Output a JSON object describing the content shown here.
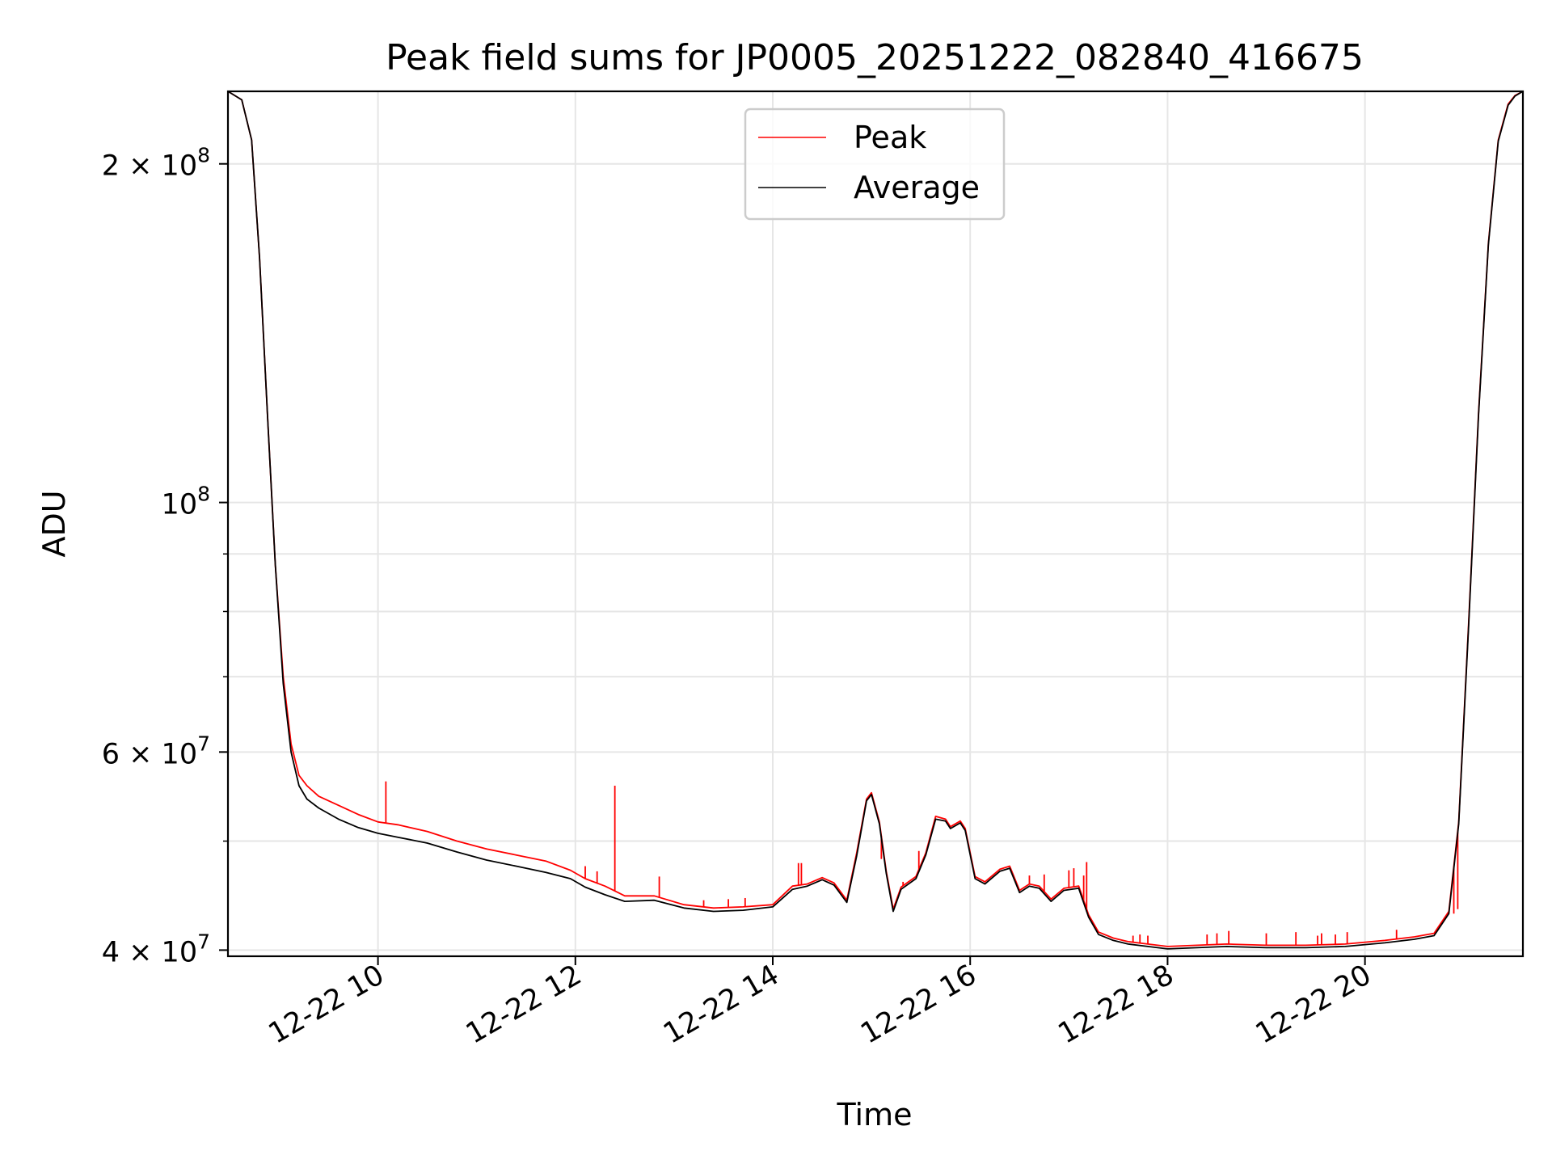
{
  "chart_data": {
    "type": "line",
    "title": "Peak field sums for JP0005_20251222_082840_416675",
    "xlabel": "Time",
    "ylabel": "ADU",
    "yscale": "log",
    "grid": true,
    "legend_position": "top-center",
    "x_unit": "hours since 12-22 00:00",
    "xlim": [
      8.48,
      21.6
    ],
    "ylim": [
      39500000,
      232000000
    ],
    "x_ticks": [
      {
        "value": 10,
        "label": "12-22 10"
      },
      {
        "value": 12,
        "label": "12-22 12"
      },
      {
        "value": 14,
        "label": "12-22 14"
      },
      {
        "value": 16,
        "label": "12-22 16"
      },
      {
        "value": 18,
        "label": "12-22 18"
      },
      {
        "value": 20,
        "label": "12-22 20"
      }
    ],
    "y_ticks": [
      {
        "value": 40000000,
        "mantissa": "4",
        "exponent": "7"
      },
      {
        "value": 60000000,
        "mantissa": "6",
        "exponent": "7"
      },
      {
        "value": 100000000,
        "mantissa": "10",
        "exponent": "8"
      },
      {
        "value": 200000000,
        "mantissa": "2",
        "exponent": "8"
      }
    ],
    "y_minor_ticks": [
      50000000,
      70000000,
      80000000,
      90000000
    ],
    "series": [
      {
        "name": "Peak",
        "color": "#ff0000",
        "x": [
          8.48,
          8.62,
          8.72,
          8.8,
          8.88,
          8.96,
          9.04,
          9.12,
          9.2,
          9.28,
          9.4,
          9.6,
          9.8,
          10.0,
          10.2,
          10.5,
          10.8,
          11.1,
          11.4,
          11.7,
          11.95,
          12.1,
          12.3,
          12.5,
          12.8,
          13.1,
          13.4,
          13.7,
          14.0,
          14.2,
          14.35,
          14.5,
          14.62,
          14.75,
          14.85,
          14.95,
          15.0,
          15.08,
          15.15,
          15.22,
          15.3,
          15.45,
          15.55,
          15.65,
          15.75,
          15.8,
          15.9,
          15.95,
          16.05,
          16.15,
          16.3,
          16.4,
          16.5,
          16.6,
          16.7,
          16.82,
          16.95,
          17.1,
          17.2,
          17.3,
          17.45,
          17.6,
          17.8,
          18.0,
          18.3,
          18.6,
          19.0,
          19.4,
          19.8,
          20.2,
          20.5,
          20.7,
          20.85,
          20.95,
          21.05,
          21.15,
          21.25,
          21.35,
          21.45,
          21.52,
          21.6
        ],
        "values": [
          232000000,
          228000000,
          210000000,
          165000000,
          120000000,
          88000000,
          70000000,
          61000000,
          57200000,
          56000000,
          54800000,
          53800000,
          52800000,
          52000000,
          51700000,
          51000000,
          50000000,
          49200000,
          48600000,
          48000000,
          47100000,
          46300000,
          45600000,
          44700000,
          44700000,
          43900000,
          43600000,
          43700000,
          43900000,
          45600000,
          45800000,
          46400000,
          45900000,
          44300000,
          48800000,
          54500000,
          55200000,
          52000000,
          47000000,
          43500000,
          45500000,
          46500000,
          48800000,
          52600000,
          52300000,
          51500000,
          52100000,
          51300000,
          46500000,
          46000000,
          47200000,
          47500000,
          45200000,
          45800000,
          45600000,
          44400000,
          45400000,
          45600000,
          43000000,
          41500000,
          41000000,
          40700000,
          40500000,
          40300000,
          40400000,
          40500000,
          40400000,
          40400000,
          40500000,
          40800000,
          41100000,
          41400000,
          43300000,
          52000000,
          78000000,
          120000000,
          170000000,
          210000000,
          226000000,
          230000000,
          232000000
        ]
      },
      {
        "name": "Average",
        "color": "#000000",
        "x": [
          8.48,
          8.62,
          8.72,
          8.8,
          8.88,
          8.96,
          9.04,
          9.12,
          9.2,
          9.28,
          9.4,
          9.6,
          9.8,
          10.0,
          10.2,
          10.5,
          10.8,
          11.1,
          11.4,
          11.7,
          11.95,
          12.1,
          12.3,
          12.5,
          12.8,
          13.1,
          13.4,
          13.7,
          14.0,
          14.2,
          14.35,
          14.5,
          14.62,
          14.75,
          14.85,
          14.95,
          15.0,
          15.08,
          15.15,
          15.22,
          15.3,
          15.45,
          15.55,
          15.65,
          15.75,
          15.8,
          15.9,
          15.95,
          16.05,
          16.15,
          16.3,
          16.4,
          16.5,
          16.6,
          16.7,
          16.82,
          16.95,
          17.1,
          17.2,
          17.3,
          17.45,
          17.6,
          17.8,
          18.0,
          18.3,
          18.6,
          19.0,
          19.4,
          19.8,
          20.2,
          20.5,
          20.7,
          20.85,
          20.95,
          21.05,
          21.15,
          21.25,
          21.35,
          21.45,
          21.52,
          21.6
        ],
        "values": [
          232000000,
          228000000,
          210000000,
          165000000,
          120000000,
          88000000,
          69000000,
          60000000,
          56000000,
          54500000,
          53500000,
          52300000,
          51400000,
          50800000,
          50400000,
          49800000,
          48900000,
          48100000,
          47500000,
          46900000,
          46300000,
          45500000,
          44800000,
          44200000,
          44300000,
          43600000,
          43300000,
          43400000,
          43700000,
          45300000,
          45600000,
          46200000,
          45700000,
          44100000,
          48500000,
          54300000,
          55000000,
          51800000,
          46800000,
          43300000,
          45300000,
          46300000,
          48600000,
          52300000,
          52100000,
          51300000,
          51900000,
          51100000,
          46300000,
          45800000,
          47000000,
          47300000,
          45000000,
          45600000,
          45400000,
          44200000,
          45200000,
          45400000,
          42800000,
          41300000,
          40800000,
          40500000,
          40300000,
          40100000,
          40200000,
          40300000,
          40200000,
          40200000,
          40300000,
          40600000,
          40900000,
          41200000,
          43100000,
          51800000,
          77500000,
          119500000,
          169500000,
          209500000,
          225500000,
          229800000,
          232000000
        ]
      }
    ],
    "peak_spikes": {
      "x": [
        10.08,
        12.1,
        12.22,
        12.4,
        12.85,
        13.3,
        13.55,
        13.72,
        14.26,
        14.29,
        15.1,
        15.32,
        15.48,
        16.6,
        16.75,
        17.0,
        17.05,
        17.15,
        17.18,
        17.65,
        17.72,
        17.8,
        18.4,
        18.5,
        18.62,
        19.0,
        19.3,
        19.52,
        19.56,
        19.7,
        19.82,
        20.32,
        20.9,
        20.94
      ],
      "values": [
        56500000,
        47500000,
        47000000,
        56000000,
        46500000,
        44300000,
        44400000,
        44500000,
        47800000,
        47800000,
        48200000,
        46000000,
        49000000,
        46600000,
        46700000,
        47100000,
        47300000,
        46600000,
        47900000,
        41200000,
        41300000,
        41200000,
        41300000,
        41400000,
        41600000,
        41400000,
        41500000,
        41200000,
        41400000,
        41300000,
        41500000,
        41700000,
        43100000,
        43500000
      ]
    },
    "legend": [
      {
        "label": "Peak",
        "color": "#ff0000"
      },
      {
        "label": "Average",
        "color": "#000000"
      }
    ],
    "ytick_prefix": "10",
    "times_sign": "×"
  }
}
